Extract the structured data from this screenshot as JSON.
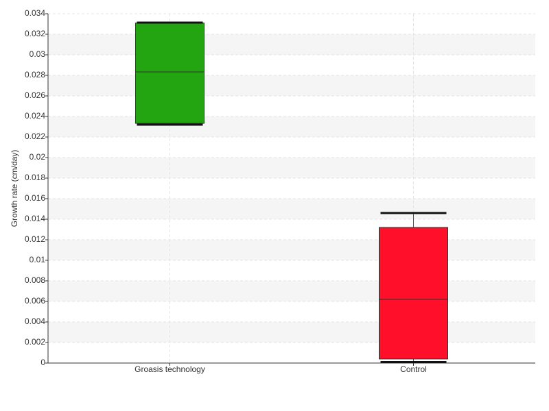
{
  "chart_data": {
    "type": "box",
    "y_label": "Growth rate (cm/day)",
    "categories": [
      "Groasis technology",
      "Control"
    ],
    "boxes": [
      {
        "min": 0.0232,
        "q1": 0.02333,
        "median": 0.02833,
        "q3": 0.0331,
        "max": 0.03313,
        "color": "#22a511"
      },
      {
        "min": 0.0001,
        "q1": 0.0004,
        "median": 0.0062,
        "q3": 0.0132,
        "max": 0.0146,
        "color": "#ff0f2a"
      }
    ],
    "ylim": [
      0,
      0.034
    ],
    "yticks": [
      0,
      0.002,
      0.004,
      0.006,
      0.008,
      0.01,
      0.012,
      0.014,
      0.016,
      0.018,
      0.02,
      0.022,
      0.024,
      0.026,
      0.028,
      0.03,
      0.032,
      0.034
    ],
    "grid": true
  }
}
